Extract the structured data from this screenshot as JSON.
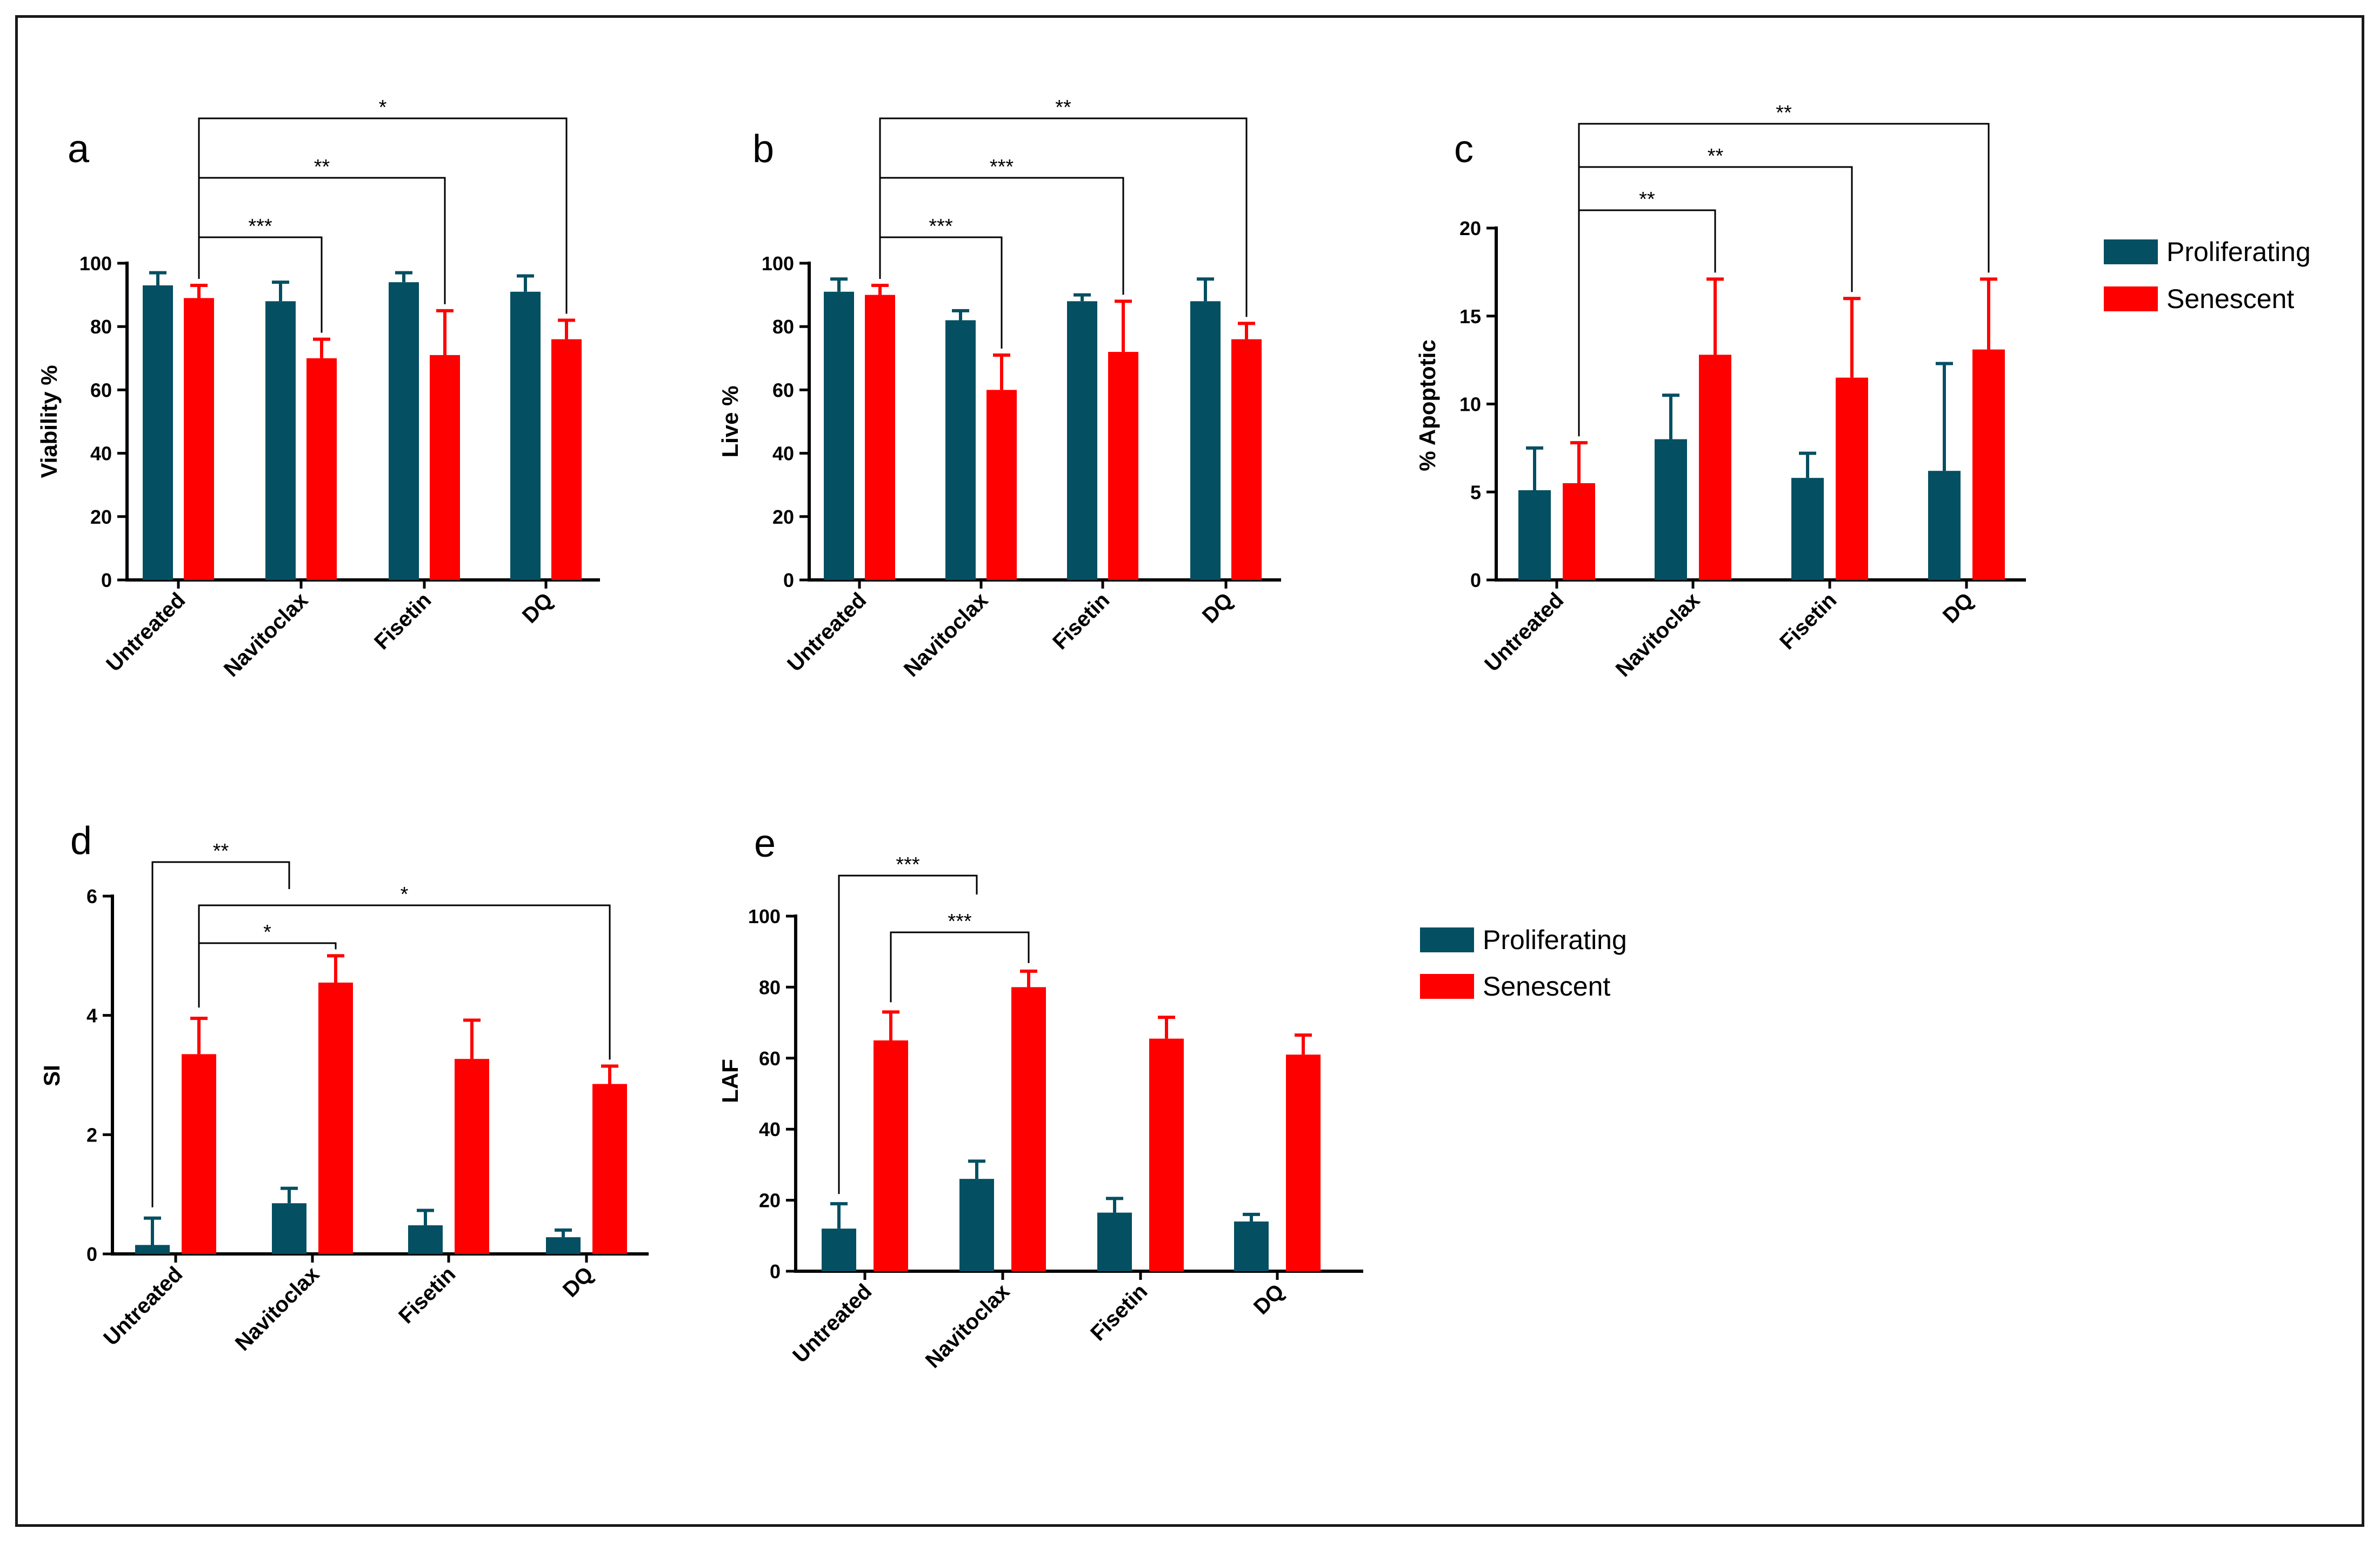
{
  "colors": {
    "proliferating": "#044F62",
    "senescent": "#FF0000"
  },
  "legend": {
    "proliferating": "Proliferating",
    "senescent": "Senescent"
  },
  "chart_data": [
    {
      "id": "a",
      "type": "bar",
      "panel": "a",
      "ylabel": "Viability %",
      "categories": [
        "Untreated",
        "Navitoclax",
        "Fisetin",
        "DQ"
      ],
      "ylim": [
        0,
        100
      ],
      "yticks": [
        0,
        20,
        40,
        60,
        80,
        100
      ],
      "series": [
        {
          "name": "Proliferating",
          "values": [
            93,
            88,
            94,
            91
          ],
          "errors": [
            4,
            6,
            3,
            5
          ]
        },
        {
          "name": "Senescent",
          "values": [
            89,
            70,
            71,
            76
          ],
          "errors": [
            4,
            6,
            14,
            6
          ]
        }
      ],
      "comparisons": [
        {
          "from": 0,
          "to": 1,
          "label": "***"
        },
        {
          "from": 0,
          "to": 2,
          "label": "**"
        },
        {
          "from": 0,
          "to": 3,
          "label": "*"
        }
      ]
    },
    {
      "id": "b",
      "type": "bar",
      "panel": "b",
      "ylabel": "Live %",
      "categories": [
        "Untreated",
        "Navitoclax",
        "Fisetin",
        "DQ"
      ],
      "ylim": [
        0,
        100
      ],
      "yticks": [
        0,
        20,
        40,
        60,
        80,
        100
      ],
      "series": [
        {
          "name": "Proliferating",
          "values": [
            91,
            82,
            88,
            88
          ],
          "errors": [
            4,
            3,
            2,
            7
          ]
        },
        {
          "name": "Senescent",
          "values": [
            90,
            60,
            72,
            76
          ],
          "errors": [
            3,
            11,
            16,
            5
          ]
        }
      ],
      "comparisons": [
        {
          "from": 0,
          "to": 1,
          "label": "***"
        },
        {
          "from": 0,
          "to": 2,
          "label": "***"
        },
        {
          "from": 0,
          "to": 3,
          "label": "**"
        }
      ]
    },
    {
      "id": "c",
      "type": "bar",
      "panel": "c",
      "ylabel": "% Apoptotic",
      "categories": [
        "Untreated",
        "Navitoclax",
        "Fisetin",
        "DQ"
      ],
      "ylim": [
        0,
        20
      ],
      "yticks": [
        0,
        5,
        10,
        15,
        20
      ],
      "series": [
        {
          "name": "Proliferating",
          "values": [
            5.1,
            8.0,
            5.8,
            6.2
          ],
          "errors": [
            2.4,
            2.5,
            1.4,
            6.1
          ]
        },
        {
          "name": "Senescent",
          "values": [
            5.5,
            12.8,
            11.5,
            13.1
          ],
          "errors": [
            2.3,
            4.3,
            4.5,
            4.0
          ]
        }
      ],
      "comparisons": [
        {
          "from": 0,
          "to": 1,
          "label": "**"
        },
        {
          "from": 0,
          "to": 2,
          "label": "**"
        },
        {
          "from": 0,
          "to": 3,
          "label": "**"
        }
      ]
    },
    {
      "id": "d",
      "type": "bar",
      "panel": "d",
      "ylabel": "SI",
      "categories": [
        "Untreated",
        "Navitoclax",
        "Fisetin",
        "DQ"
      ],
      "ylim": [
        0,
        6
      ],
      "yticks": [
        0,
        2,
        4,
        6
      ],
      "series": [
        {
          "name": "Proliferating",
          "values": [
            0.15,
            0.85,
            0.48,
            0.28
          ],
          "errors": [
            0.45,
            0.25,
            0.25,
            0.12
          ]
        },
        {
          "name": "Senescent",
          "values": [
            3.35,
            4.55,
            3.27,
            2.85
          ],
          "errors": [
            0.6,
            0.45,
            0.65,
            0.3
          ]
        }
      ],
      "comparisons": [
        {
          "from": "Untreated.Proliferating",
          "to": "Navitoclax.Proliferating",
          "label": "**"
        },
        {
          "from": "Untreated.Senescent",
          "to": "Navitoclax.Senescent",
          "label": "*"
        },
        {
          "from": "Untreated.Senescent",
          "to": "DQ.Senescent",
          "label": "*"
        }
      ]
    },
    {
      "id": "e",
      "type": "bar",
      "panel": "e",
      "ylabel": "LAF",
      "categories": [
        "Untreated",
        "Navitoclax",
        "Fisetin",
        "DQ"
      ],
      "ylim": [
        0,
        100
      ],
      "yticks": [
        0,
        20,
        40,
        60,
        80,
        100
      ],
      "series": [
        {
          "name": "Proliferating",
          "values": [
            12,
            26,
            16.5,
            14
          ],
          "errors": [
            7,
            5,
            4,
            2
          ]
        },
        {
          "name": "Senescent",
          "values": [
            65,
            80,
            65.5,
            61
          ],
          "errors": [
            8,
            4.5,
            6,
            5.5
          ]
        }
      ],
      "comparisons": [
        {
          "from": "Untreated.Proliferating",
          "to": "Navitoclax.Proliferating",
          "label": "***"
        },
        {
          "from": "Untreated.Senescent",
          "to": "Navitoclax.Senescent",
          "label": "***"
        }
      ]
    }
  ]
}
